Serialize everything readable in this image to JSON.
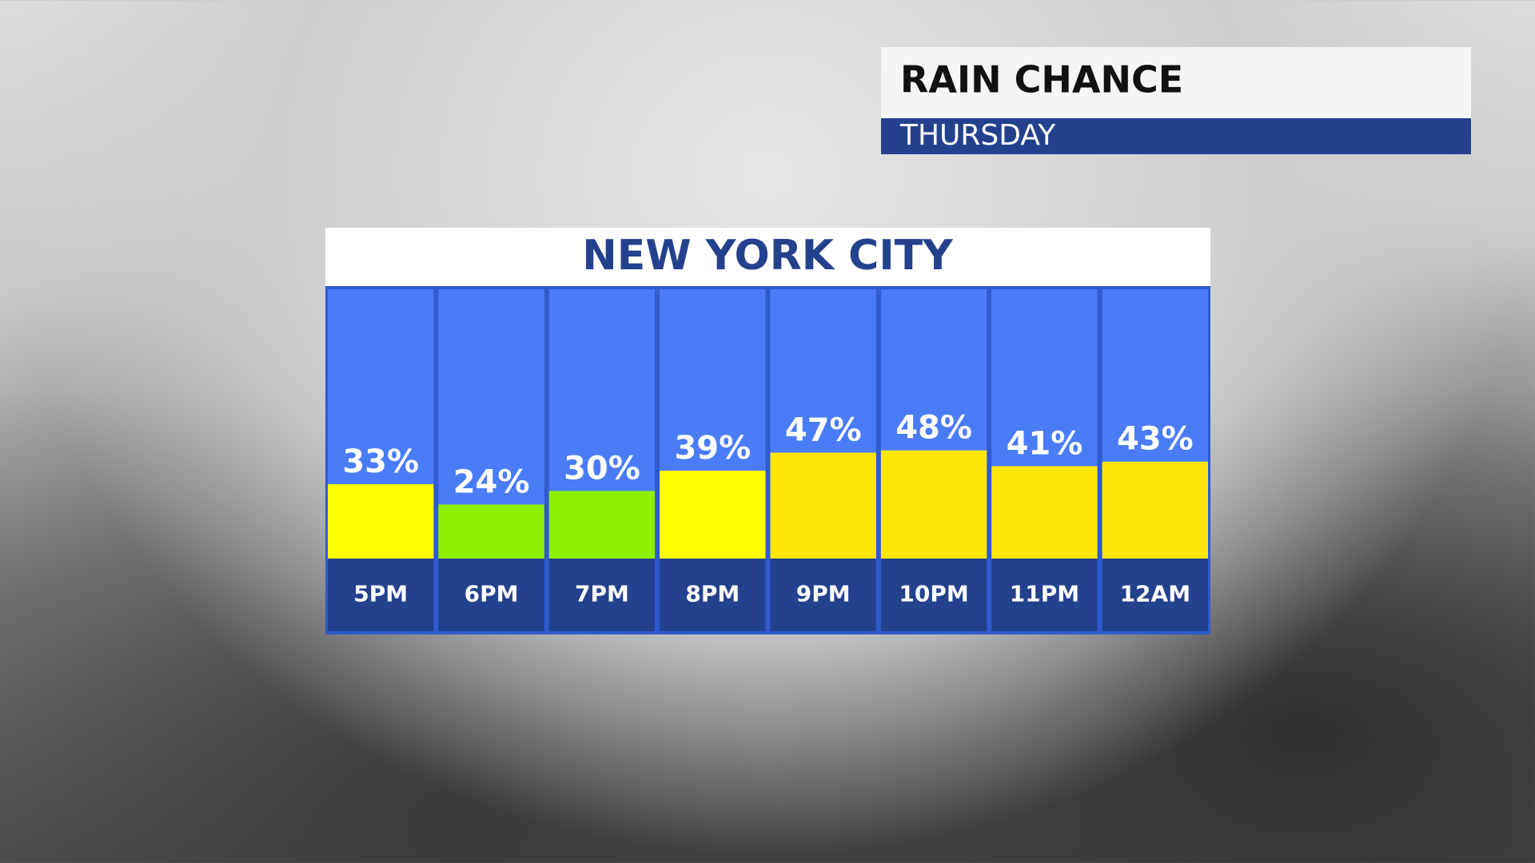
{
  "chart_data": {
    "type": "bar",
    "header": "RAIN CHANCE",
    "subheader": "THURSDAY",
    "title": "NEW YORK CITY",
    "categories": [
      "5PM",
      "6PM",
      "7PM",
      "8PM",
      "9PM",
      "10PM",
      "11PM",
      "12AM"
    ],
    "values": [
      33,
      24,
      30,
      39,
      47,
      48,
      41,
      43
    ],
    "value_labels": [
      "33%",
      "24%",
      "30%",
      "39%",
      "47%",
      "48%",
      "41%",
      "43%"
    ],
    "colors": [
      "#ffff00",
      "#8cf000",
      "#8cf000",
      "#ffff00",
      "#ffe60a",
      "#ffe60a",
      "#ffe60a",
      "#ffe60a"
    ],
    "ylim": [
      0,
      100
    ]
  }
}
